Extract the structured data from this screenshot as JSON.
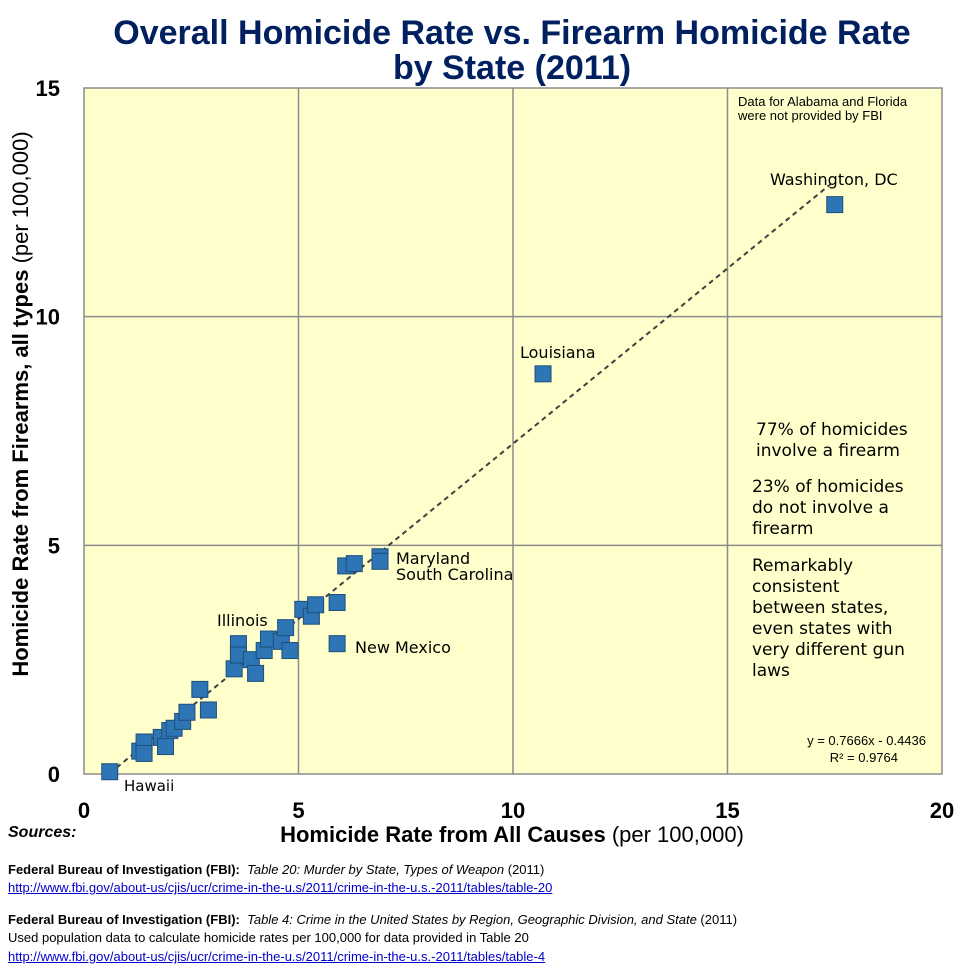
{
  "chart_data": {
    "type": "scatter",
    "title_line1": "Overall Homicide Rate vs. Firearm Homicide Rate",
    "title_line2": "by State (2011)",
    "xlabel_bold": "Homicide Rate from All Causes",
    "xlabel_rest": " (per 100,000)",
    "ylabel_bold": "Homicide Rate from Firearms, all types",
    "ylabel_rest": " (per 100,000)",
    "xlim": [
      0,
      20
    ],
    "ylim": [
      0,
      15
    ],
    "xticks": [
      0,
      5,
      10,
      15,
      20
    ],
    "yticks": [
      0,
      5,
      10,
      15
    ],
    "grid": true,
    "colors": {
      "background": "#ffffcc",
      "marker": "#2e75b6",
      "title": "#002060",
      "grid": "#8c8c8c"
    },
    "points": [
      {
        "x": 0.6,
        "y": 0.05,
        "label": "Hawaii"
      },
      {
        "x": 1.3,
        "y": 0.5
      },
      {
        "x": 1.4,
        "y": 0.7
      },
      {
        "x": 1.4,
        "y": 0.45
      },
      {
        "x": 1.8,
        "y": 0.8
      },
      {
        "x": 1.9,
        "y": 0.6
      },
      {
        "x": 2.0,
        "y": 0.95
      },
      {
        "x": 2.1,
        "y": 1.0
      },
      {
        "x": 2.3,
        "y": 1.15
      },
      {
        "x": 2.4,
        "y": 1.35
      },
      {
        "x": 2.7,
        "y": 1.85
      },
      {
        "x": 2.9,
        "y": 1.4
      },
      {
        "x": 3.5,
        "y": 2.3
      },
      {
        "x": 3.6,
        "y": 2.85,
        "label": "Illinois"
      },
      {
        "x": 3.6,
        "y": 2.6
      },
      {
        "x": 3.9,
        "y": 2.5
      },
      {
        "x": 4.0,
        "y": 2.2
      },
      {
        "x": 4.2,
        "y": 2.7
      },
      {
        "x": 4.3,
        "y": 2.95
      },
      {
        "x": 4.6,
        "y": 2.9
      },
      {
        "x": 4.7,
        "y": 3.2
      },
      {
        "x": 4.8,
        "y": 2.7
      },
      {
        "x": 5.1,
        "y": 3.6
      },
      {
        "x": 5.3,
        "y": 3.45
      },
      {
        "x": 5.4,
        "y": 3.7
      },
      {
        "x": 5.9,
        "y": 3.75
      },
      {
        "x": 5.9,
        "y": 2.85,
        "label": "New Mexico"
      },
      {
        "x": 6.1,
        "y": 4.55
      },
      {
        "x": 6.3,
        "y": 4.6
      },
      {
        "x": 6.9,
        "y": 4.75,
        "label": "Maryland"
      },
      {
        "x": 6.9,
        "y": 4.65,
        "label": "South Carolina"
      },
      {
        "x": 10.7,
        "y": 8.75,
        "label": "Louisiana"
      },
      {
        "x": 17.5,
        "y": 12.45,
        "label": "Washington, DC"
      }
    ],
    "trendline": {
      "slope": 0.7666,
      "intercept": -0.4436,
      "x_range": [
        0.6,
        17.4
      ]
    },
    "point_labels": [
      "Hawaii",
      "Illinois",
      "New Mexico",
      "Maryland",
      "South Carolina",
      "Louisiana",
      "Washington, DC"
    ],
    "annotations": {
      "note_line1": "Data for Alabama and Florida",
      "note_line2": "were not provided by FBI",
      "stat1_line1": "77% of homicides",
      "stat1_line2": "involve a firearm",
      "stat2_line1": "23% of homicides",
      "stat2_line2": "do not involve a",
      "stat2_line3": "firearm",
      "remark_line1": "Remarkably",
      "remark_line2": "consistent",
      "remark_line3": "between states,",
      "remark_line4": "even states with",
      "remark_line5": "very different gun",
      "remark_line6": "laws",
      "equation": "y = 0.7666x - 0.4436",
      "r_squared": "R² = 0.9764"
    }
  },
  "sources": {
    "label": "Sources:",
    "ref1_org": "Federal Bureau of Investigation (FBI):",
    "ref1_title": "Table 20: Murder by State, Types of Weapon",
    "ref1_year": " (2011)",
    "ref1_url": "http://www.fbi.gov/about-us/cjis/ucr/crime-in-the-u.s/2011/crime-in-the-u.s.-2011/tables/table-20",
    "ref2_org": "Federal Bureau of Investigation (FBI):",
    "ref2_title": "Table 4: Crime in the United States by Region, Geographic Division, and State",
    "ref2_year": " (2011)",
    "ref2_note": "Used population data to calculate homicide rates per 100,000 for data provided in Table 20",
    "ref2_url": "http://www.fbi.gov/about-us/cjis/ucr/crime-in-the-u.s/2011/crime-in-the-u.s.-2011/tables/table-4"
  }
}
